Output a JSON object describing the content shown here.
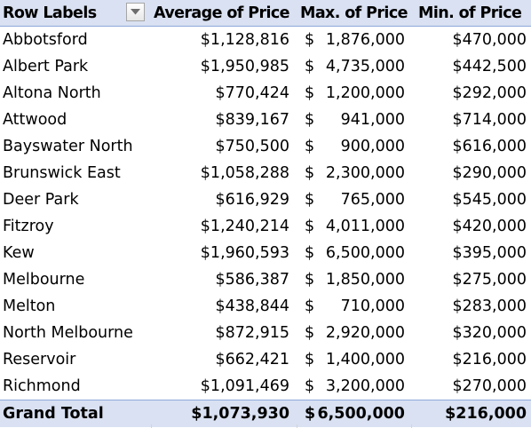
{
  "headers": {
    "row_labels": "Row Labels",
    "average": "Average of Price",
    "max": "Max. of Price",
    "min": "Min. of Price"
  },
  "rows": [
    {
      "label": "Abbotsford",
      "avg": "$1,128,816",
      "max_sym": "$",
      "max_num": "1,876,000",
      "min": "$470,000"
    },
    {
      "label": "Albert Park",
      "avg": "$1,950,985",
      "max_sym": "$",
      "max_num": "4,735,000",
      "min": "$442,500"
    },
    {
      "label": "Altona North",
      "avg": "$770,424",
      "max_sym": "$",
      "max_num": "1,200,000",
      "min": "$292,000"
    },
    {
      "label": "Attwood",
      "avg": "$839,167",
      "max_sym": "$",
      "max_num": "941,000",
      "min": "$714,000"
    },
    {
      "label": "Bayswater North",
      "avg": "$750,500",
      "max_sym": "$",
      "max_num": "900,000",
      "min": "$616,000"
    },
    {
      "label": "Brunswick East",
      "avg": "$1,058,288",
      "max_sym": "$",
      "max_num": "2,300,000",
      "min": "$290,000"
    },
    {
      "label": "Deer Park",
      "avg": "$616,929",
      "max_sym": "$",
      "max_num": "765,000",
      "min": "$545,000"
    },
    {
      "label": "Fitzroy",
      "avg": "$1,240,214",
      "max_sym": "$",
      "max_num": "4,011,000",
      "min": "$420,000"
    },
    {
      "label": "Kew",
      "avg": "$1,960,593",
      "max_sym": "$",
      "max_num": "6,500,000",
      "min": "$395,000"
    },
    {
      "label": "Melbourne",
      "avg": "$586,387",
      "max_sym": "$",
      "max_num": "1,850,000",
      "min": "$275,000"
    },
    {
      "label": "Melton",
      "avg": "$438,844",
      "max_sym": "$",
      "max_num": "710,000",
      "min": "$283,000"
    },
    {
      "label": "North Melbourne",
      "avg": "$872,915",
      "max_sym": "$",
      "max_num": "2,920,000",
      "min": "$320,000"
    },
    {
      "label": "Reservoir",
      "avg": "$662,421",
      "max_sym": "$",
      "max_num": "1,400,000",
      "min": "$216,000"
    },
    {
      "label": "Richmond",
      "avg": "$1,091,469",
      "max_sym": "$",
      "max_num": "3,200,000",
      "min": "$270,000"
    }
  ],
  "grand_total": {
    "label": "Grand Total",
    "avg": "$1,073,930",
    "max_sym": "$",
    "max_num": "6,500,000",
    "min": "$216,000"
  },
  "colors": {
    "header_bg": "#d9e1f2",
    "header_border": "#8ea9db"
  },
  "icons": {
    "filter_dropdown": "chevron-down-icon"
  }
}
